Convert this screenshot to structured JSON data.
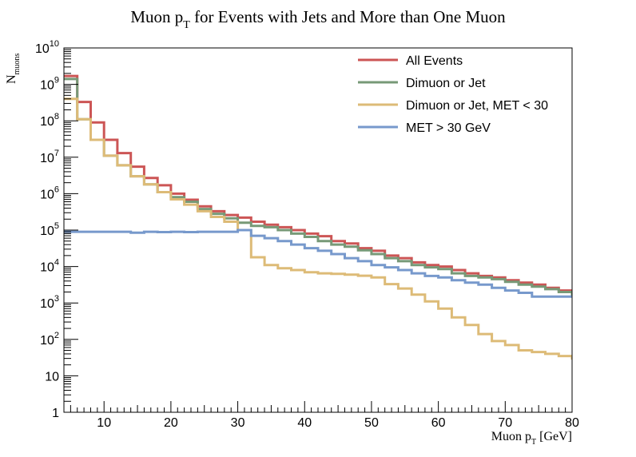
{
  "chart_data": {
    "type": "step",
    "title_main": "Muon p",
    "title_sub": "T",
    "title_rest": " for Events with Jets and More than One Muon",
    "xlabel_main": "Muon p",
    "xlabel_sub": "T",
    "xlabel_rest": " [GeV]",
    "ylabel_main": "N",
    "ylabel_sub": "muons",
    "xlim": [
      4,
      80
    ],
    "ylim": [
      1,
      10000000000
    ],
    "yscale": "log",
    "bin_width": 2,
    "x_ticks": [
      10,
      20,
      30,
      40,
      50,
      60,
      70,
      80
    ],
    "y_ticks": [
      {
        "value": 1,
        "label": "1"
      },
      {
        "value": 10,
        "label": "10"
      },
      {
        "value": 100,
        "base": "10",
        "exp": "2"
      },
      {
        "value": 1000,
        "base": "10",
        "exp": "3"
      },
      {
        "value": 10000,
        "base": "10",
        "exp": "4"
      },
      {
        "value": 100000,
        "base": "10",
        "exp": "5"
      },
      {
        "value": 1000000,
        "base": "10",
        "exp": "6"
      },
      {
        "value": 10000000,
        "base": "10",
        "exp": "7"
      },
      {
        "value": 100000000,
        "base": "10",
        "exp": "8"
      },
      {
        "value": 1000000000,
        "base": "10",
        "exp": "9"
      },
      {
        "value": 10000000000,
        "base": "10",
        "exp": "10"
      }
    ],
    "legend_position": "top-right",
    "series": [
      {
        "name": "All Events",
        "color": "#cc5555",
        "bin_edges_start": 4,
        "values": [
          1700000000,
          330000000,
          90000000,
          30000000,
          13000000,
          5500000,
          2700000,
          1700000,
          1000000,
          680000,
          450000,
          330000,
          260000,
          220000,
          170000,
          140000,
          120000,
          100000,
          80000,
          68000,
          50000,
          43000,
          32000,
          27000,
          20000,
          17000,
          13000,
          11000,
          10000,
          8000,
          6500,
          5500,
          5000,
          4200,
          3600,
          3200,
          2600,
          2200,
          1900,
          1500
        ]
      },
      {
        "name": "Dimuon or Jet",
        "color": "#779977",
        "bin_edges_start": 4,
        "values": [
          1400000000,
          110000000,
          30000000,
          11000000,
          6000000,
          3000000,
          1800000,
          1100000,
          800000,
          600000,
          380000,
          280000,
          210000,
          160000,
          130000,
          120000,
          100000,
          80000,
          65000,
          50000,
          40000,
          35000,
          28000,
          22000,
          17000,
          14000,
          11000,
          9500,
          8500,
          6500,
          5500,
          5000,
          4500,
          3800,
          3200,
          2800,
          2400,
          2000,
          1700,
          1500
        ]
      },
      {
        "name": "Dimuon or Jet, MET < 30",
        "color": "#ddbb77",
        "bin_edges_start": 4,
        "values": [
          400000000,
          110000000,
          30000000,
          11000000,
          6000000,
          3000000,
          1800000,
          1100000,
          700000,
          500000,
          330000,
          230000,
          170000,
          100000,
          18000,
          11000,
          9000,
          8000,
          7000,
          6500,
          6300,
          6000,
          5600,
          5000,
          3300,
          2500,
          1700,
          1100,
          700,
          400,
          250,
          140,
          90,
          70,
          50,
          45,
          40,
          35,
          30,
          25
        ]
      },
      {
        "name": "MET > 30 GeV",
        "color": "#7799cc",
        "bin_edges_start": 4,
        "values": [
          90000,
          90000,
          90000,
          90000,
          90000,
          85000,
          90000,
          88000,
          90000,
          88000,
          90000,
          90000,
          90000,
          100000,
          70000,
          60000,
          50000,
          40000,
          32000,
          27000,
          22000,
          17000,
          14000,
          11000,
          9500,
          8000,
          6500,
          5500,
          5000,
          4200,
          3600,
          3200,
          2600,
          2200,
          1900,
          1500,
          1500,
          1500,
          1500,
          1500
        ]
      }
    ]
  }
}
